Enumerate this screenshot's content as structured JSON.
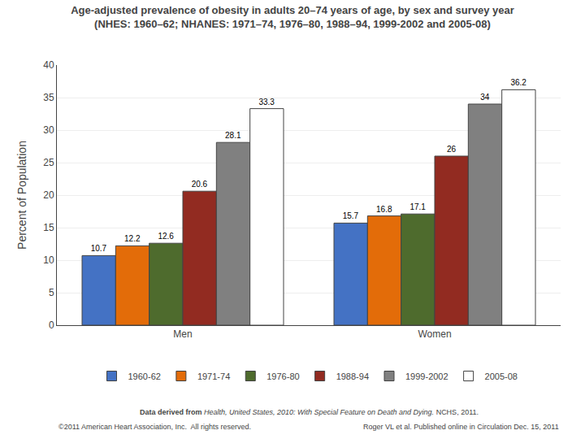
{
  "chart_data": {
    "type": "bar",
    "title": "Age-adjusted prevalence of obesity in adults 20–74 years of age, by sex and survey year",
    "subtitle": "(NHES: 1960–62; NHANES: 1971–74, 1976–80, 1988–94, 1999-2002 and 2005-08)",
    "ylabel": "Percent of Population",
    "categories": [
      "Men",
      "Women"
    ],
    "series": [
      {
        "name": "1960-62",
        "color": "#4472C4",
        "values": [
          10.7,
          15.7
        ]
      },
      {
        "name": "1971-74",
        "color": "#E36C09",
        "values": [
          12.2,
          16.8
        ]
      },
      {
        "name": "1976-80",
        "color": "#4E6B2D",
        "values": [
          12.6,
          17.1
        ]
      },
      {
        "name": "1988-94",
        "color": "#922B21",
        "values": [
          20.6,
          26.0
        ]
      },
      {
        "name": "1999-2002",
        "color": "#808080",
        "values": [
          28.1,
          34.0
        ]
      },
      {
        "name": "2005-08",
        "color": "#FFFFFF",
        "values": [
          33.3,
          36.2
        ]
      }
    ],
    "ylim": [
      0,
      40
    ],
    "yticks": [
      0,
      5,
      10,
      15,
      20,
      25,
      30,
      35,
      40
    ],
    "grid": true,
    "legend": "bottom",
    "data_labels": true,
    "annotations": [
      "Data derived from ",
      "Health, United States, 2010: With Special Feature on Death and Dying.",
      " NCHS, 2011.",
      "©2011 American Heart Association, Inc.  All rights reserved.",
      "Roger VL et al. Published online in Circulation Dec. 15, 2011"
    ]
  }
}
